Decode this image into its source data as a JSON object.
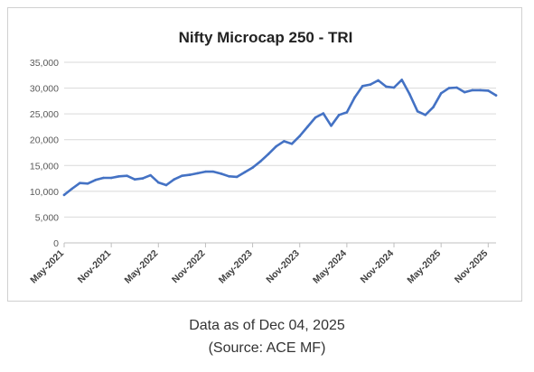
{
  "chart_data": {
    "type": "line",
    "title": "Nifty Microcap 250 - TRI",
    "xlabel": "",
    "ylabel": "",
    "ylim": [
      0,
      35000
    ],
    "yticks": [
      0,
      5000,
      10000,
      15000,
      20000,
      25000,
      30000,
      35000
    ],
    "ytick_labels": [
      "0",
      "5,000",
      "10,000",
      "15,000",
      "20,000",
      "25,000",
      "30,000",
      "35,000"
    ],
    "xlim": [
      "2021-05",
      "2025-12"
    ],
    "xticks": [
      "May-2021",
      "Nov-2021",
      "May-2022",
      "Nov-2022",
      "May-2023",
      "Nov-2023",
      "May-2024",
      "Nov-2024",
      "May-2025",
      "Nov-2025"
    ],
    "grid": true,
    "legend": "none",
    "series_color": "#4472c4",
    "series": [
      {
        "name": "",
        "points": [
          [
            "2021-05",
            9300
          ],
          [
            "2021-06",
            10500
          ],
          [
            "2021-07",
            11600
          ],
          [
            "2021-08",
            11500
          ],
          [
            "2021-09",
            12200
          ],
          [
            "2021-10",
            12600
          ],
          [
            "2021-11",
            12600
          ],
          [
            "2021-12",
            12900
          ],
          [
            "2022-01",
            13000
          ],
          [
            "2022-02",
            12300
          ],
          [
            "2022-03",
            12500
          ],
          [
            "2022-04",
            13100
          ],
          [
            "2022-05",
            11700
          ],
          [
            "2022-06",
            11200
          ],
          [
            "2022-07",
            12300
          ],
          [
            "2022-08",
            13000
          ],
          [
            "2022-09",
            13200
          ],
          [
            "2022-10",
            13500
          ],
          [
            "2022-11",
            13800
          ],
          [
            "2022-12",
            13800
          ],
          [
            "2023-01",
            13400
          ],
          [
            "2023-02",
            12900
          ],
          [
            "2023-03",
            12800
          ],
          [
            "2023-04",
            13700
          ],
          [
            "2023-05",
            14600
          ],
          [
            "2023-06",
            15800
          ],
          [
            "2023-07",
            17200
          ],
          [
            "2023-08",
            18700
          ],
          [
            "2023-09",
            19700
          ],
          [
            "2023-10",
            19200
          ],
          [
            "2023-11",
            20700
          ],
          [
            "2023-12",
            22500
          ],
          [
            "2024-01",
            24300
          ],
          [
            "2024-02",
            25100
          ],
          [
            "2024-03",
            22700
          ],
          [
            "2024-04",
            24800
          ],
          [
            "2024-05",
            25300
          ],
          [
            "2024-06",
            28200
          ],
          [
            "2024-07",
            30400
          ],
          [
            "2024-08",
            30700
          ],
          [
            "2024-09",
            31500
          ],
          [
            "2024-10",
            30300
          ],
          [
            "2024-11",
            30100
          ],
          [
            "2024-12",
            31600
          ],
          [
            "2025-01",
            28800
          ],
          [
            "2025-02",
            25500
          ],
          [
            "2025-03",
            24800
          ],
          [
            "2025-04",
            26300
          ],
          [
            "2025-05",
            29000
          ],
          [
            "2025-06",
            30000
          ],
          [
            "2025-07",
            30100
          ],
          [
            "2025-08",
            29200
          ],
          [
            "2025-09",
            29600
          ],
          [
            "2025-10",
            29600
          ],
          [
            "2025-11",
            29500
          ],
          [
            "2025-12",
            28600
          ]
        ]
      }
    ]
  },
  "footer": {
    "note": "Data as of Dec 04, 2025",
    "source": "(Source: ACE MF)"
  }
}
